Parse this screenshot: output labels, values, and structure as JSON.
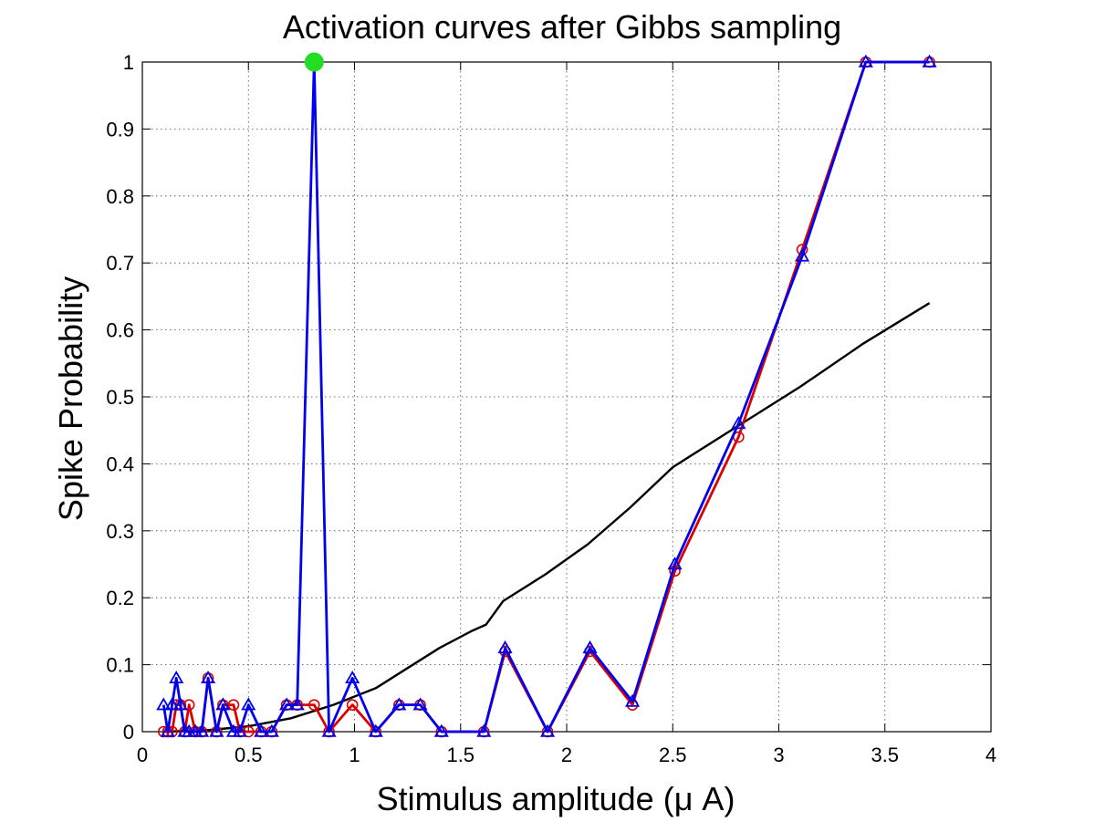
{
  "chart_data": {
    "type": "line",
    "title": "Activation curves after Gibbs sampling",
    "xlabel": "Stimulus amplitude (μ A)",
    "ylabel": "Spike Probability",
    "xlim": [
      0,
      4
    ],
    "ylim": [
      0,
      1
    ],
    "xticks": [
      0,
      0.5,
      1,
      1.5,
      2,
      2.5,
      3,
      3.5,
      4
    ],
    "yticks": [
      0,
      0.1,
      0.2,
      0.3,
      0.4,
      0.5,
      0.6,
      0.7,
      0.8,
      0.9,
      1
    ],
    "xtick_labels": [
      "0",
      "0.5",
      "1",
      "1.5",
      "2",
      "2.5",
      "3",
      "3.5",
      "4"
    ],
    "ytick_labels": [
      "0",
      "0.1",
      "0.2",
      "0.3",
      "0.4",
      "0.5",
      "0.6",
      "0.7",
      "0.8",
      "0.9",
      "1"
    ],
    "grid": true,
    "series": [
      {
        "marker": "circle",
        "color": "#dd0000",
        "x": [
          0.1,
          0.12,
          0.14,
          0.16,
          0.18,
          0.2,
          0.22,
          0.25,
          0.28,
          0.31,
          0.35,
          0.38,
          0.43,
          0.46,
          0.5,
          0.56,
          0.61,
          0.68,
          0.73,
          0.81,
          0.88,
          0.99,
          1.1,
          1.21,
          1.31,
          1.41,
          1.61,
          1.71,
          1.91,
          2.11,
          2.31,
          2.51,
          2.81,
          3.11,
          3.41,
          3.71
        ],
        "y": [
          0.0,
          0.0,
          0.0,
          0.04,
          0.04,
          0.0,
          0.04,
          0.0,
          0.0,
          0.08,
          0.0,
          0.04,
          0.04,
          0.0,
          0.0,
          0.0,
          0.0,
          0.04,
          0.04,
          0.04,
          0.0,
          0.04,
          0.0,
          0.04,
          0.04,
          0.0,
          0.0,
          0.12,
          0.0,
          0.12,
          0.04,
          0.24,
          0.44,
          0.72,
          1.0,
          1.0
        ]
      },
      {
        "marker": "triangle",
        "color": "#0000ee",
        "x": [
          0.1,
          0.12,
          0.14,
          0.16,
          0.18,
          0.2,
          0.22,
          0.25,
          0.28,
          0.31,
          0.35,
          0.38,
          0.43,
          0.46,
          0.5,
          0.56,
          0.61,
          0.68,
          0.73,
          0.81,
          0.88,
          0.99,
          1.1,
          1.21,
          1.31,
          1.41,
          1.61,
          1.71,
          1.91,
          2.11,
          2.31,
          2.51,
          2.81,
          3.11,
          3.41,
          3.71
        ],
        "y": [
          0.04,
          0.0,
          0.04,
          0.08,
          0.04,
          0.0,
          0.0,
          0.0,
          0.0,
          0.08,
          0.0,
          0.04,
          0.0,
          0.0,
          0.04,
          0.0,
          0.0,
          0.04,
          0.04,
          1.0,
          0.0,
          0.08,
          0.0,
          0.04,
          0.04,
          0.0,
          0.0,
          0.125,
          0.0,
          0.125,
          0.045,
          0.25,
          0.46,
          0.71,
          1.0,
          1.0
        ]
      },
      {
        "marker": "none",
        "color": "#000000",
        "x": [
          0.1,
          0.3,
          0.5,
          0.7,
          0.9,
          1.1,
          1.25,
          1.4,
          1.55,
          1.62,
          1.7,
          1.9,
          2.1,
          2.3,
          2.5,
          2.8,
          3.1,
          3.4,
          3.71
        ],
        "y": [
          0.0,
          0.002,
          0.008,
          0.02,
          0.04,
          0.065,
          0.095,
          0.125,
          0.15,
          0.16,
          0.195,
          0.235,
          0.28,
          0.335,
          0.395,
          0.455,
          0.515,
          0.58,
          0.64
        ]
      }
    ],
    "highlight_point": {
      "x": 0.81,
      "y": 1.0,
      "color": "#22dd22"
    }
  }
}
